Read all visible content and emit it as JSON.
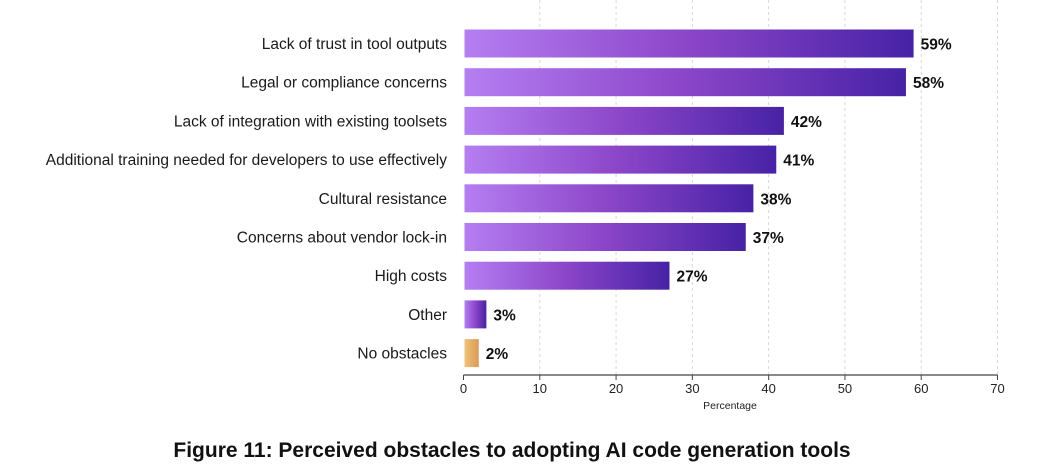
{
  "chart_data": {
    "type": "bar",
    "orientation": "horizontal",
    "title": "Figure 11: Perceived obstacles to adopting AI code generation tools",
    "xlabel": "Percentage",
    "ylabel": "",
    "xlim": [
      0,
      70
    ],
    "xticks": [
      0,
      10,
      20,
      30,
      40,
      50,
      60,
      70
    ],
    "grid": "vertical dashed",
    "categories": [
      "Lack of trust in tool outputs",
      "Legal or compliance concerns",
      "Lack of integration with existing toolsets",
      "Additional training needed for developers to use effectively",
      "Cultural resistance",
      "Concerns about vendor lock-in",
      "High costs",
      "Other",
      "No obstacles"
    ],
    "values": [
      59,
      58,
      42,
      41,
      38,
      37,
      27,
      3,
      2
    ],
    "labels": [
      "59%",
      "58%",
      "42%",
      "41%",
      "38%",
      "37%",
      "27%",
      "3%",
      "2%"
    ],
    "colors": {
      "gradient_start": "#b57ef2",
      "gradient_mid": "#8b45c8",
      "gradient_end": "#4722a6",
      "highlight_start": "#f0c27a",
      "highlight_end": "#d99a55"
    }
  }
}
